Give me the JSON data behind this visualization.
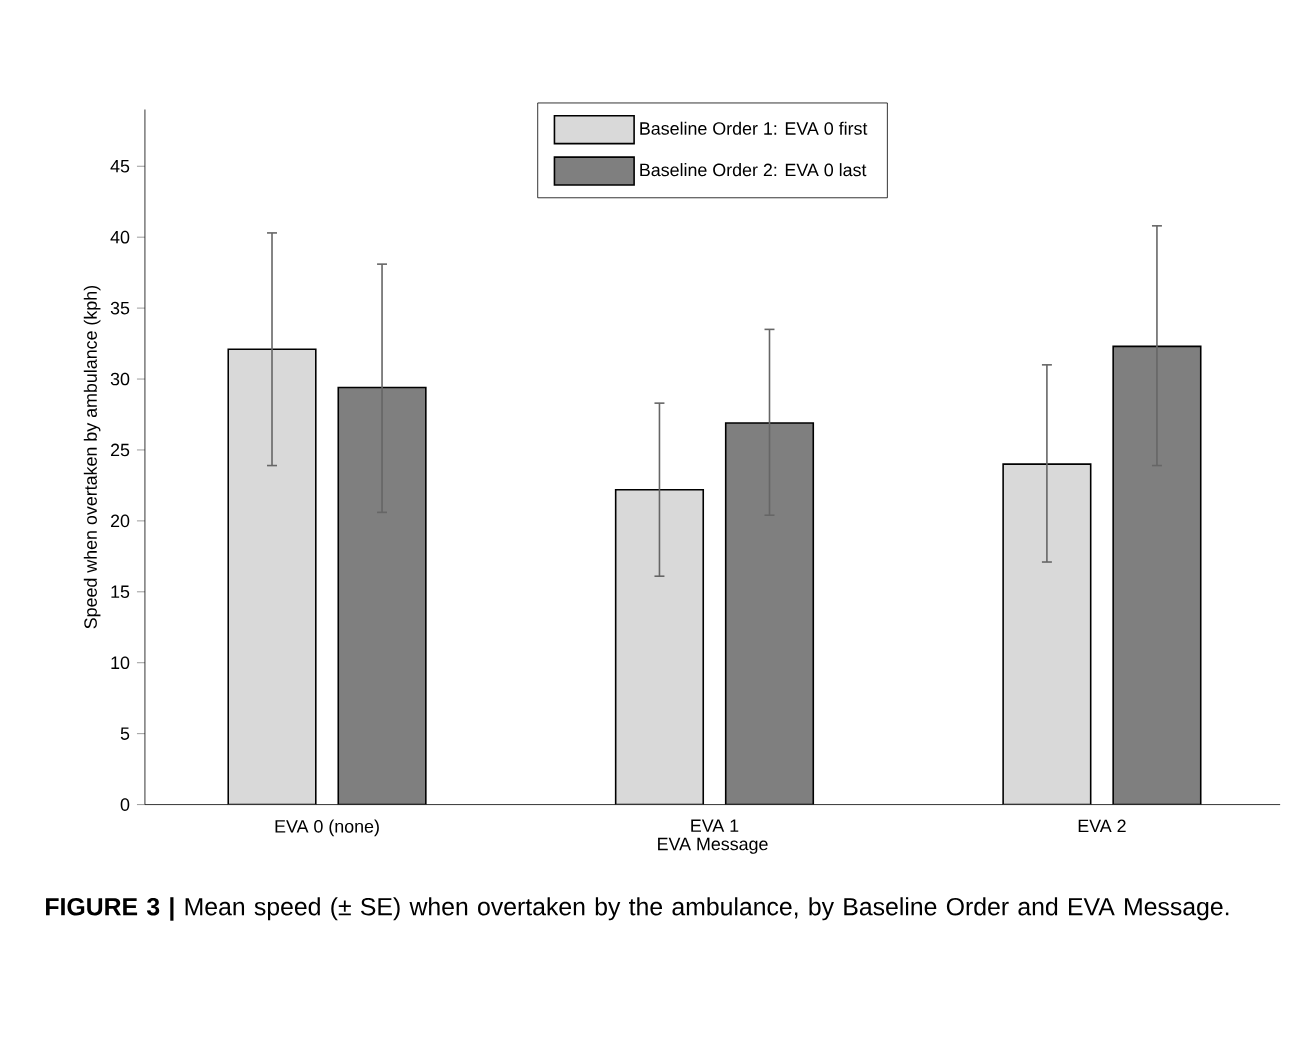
{
  "chart_data": {
    "type": "bar",
    "categories": [
      "EVA 0 (none)",
      "EVA 1",
      "EVA 2"
    ],
    "xlabel": "EVA Message",
    "ylabel": "Speed when overtaken by ambulance (kph)",
    "series": [
      {
        "name": "Baseline Order 1: EVA 0 first",
        "color": "#d9d9d9",
        "values": [
          32.1,
          22.2,
          24.0
        ],
        "errors": [
          [
            23.9,
            40.3
          ],
          [
            16.1,
            28.3
          ],
          [
            17.1,
            31.0
          ]
        ]
      },
      {
        "name": "Baseline Order 2: EVA 0 last",
        "color": "#7f7f7f",
        "values": [
          29.4,
          26.9,
          32.3
        ],
        "errors": [
          [
            20.6,
            38.1
          ],
          [
            20.4,
            33.5
          ],
          [
            23.9,
            40.8
          ]
        ]
      }
    ],
    "ylim": [
      0,
      49
    ],
    "yticks": [
      0,
      5,
      10,
      15,
      20,
      25,
      30,
      35,
      40,
      45
    ],
    "legend": "top",
    "grid": false,
    "tick_labels": "y",
    "annotations": [
      "**FIGURE 3 |** Mean speed (± SE) when overtaken by the ambulance, by Baseline Order and EVA Message."
    ]
  }
}
